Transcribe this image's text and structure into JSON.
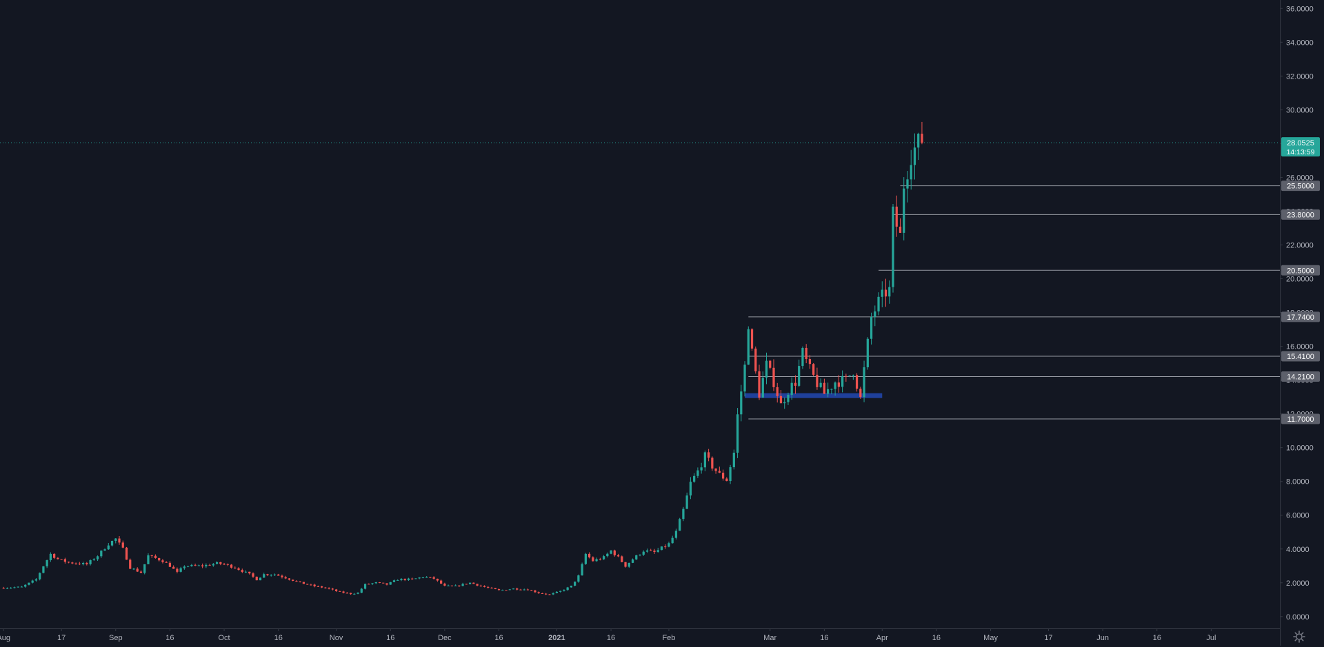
{
  "theme": {
    "background": "#131722",
    "up_color": "#26a69a",
    "down_color": "#ef5350",
    "axis_line": "#363a45",
    "axis_text": "#b2b5be",
    "level_line": "#9598a1",
    "level_label_bg": "#5d606b",
    "zone_color": "#2962ff",
    "last_price_color": "#26a69a"
  },
  "chart_data": {
    "type": "candlestick",
    "title": "",
    "xlabel": "",
    "ylabel": "",
    "ylim": [
      -0.7,
      36.5
    ],
    "grid": false,
    "x_range": [
      "2020-07-31",
      "2021-07-20"
    ],
    "y_ticks": [
      "0.0000",
      "2.0000",
      "4.0000",
      "6.0000",
      "8.0000",
      "10.0000",
      "12.0000",
      "14.0000",
      "16.0000",
      "18.0000",
      "20.0000",
      "22.0000",
      "24.0000",
      "26.0000",
      "28.0000",
      "30.0000",
      "32.0000",
      "34.0000",
      "36.0000"
    ],
    "x_ticks": [
      {
        "label": "Aug",
        "date": "2020-08-01",
        "bold": false
      },
      {
        "label": "17",
        "date": "2020-08-17",
        "bold": false
      },
      {
        "label": "Sep",
        "date": "2020-09-01",
        "bold": false
      },
      {
        "label": "16",
        "date": "2020-09-16",
        "bold": false
      },
      {
        "label": "Oct",
        "date": "2020-10-01",
        "bold": false
      },
      {
        "label": "16",
        "date": "2020-10-16",
        "bold": false
      },
      {
        "label": "Nov",
        "date": "2020-11-01",
        "bold": false
      },
      {
        "label": "16",
        "date": "2020-11-16",
        "bold": false
      },
      {
        "label": "Dec",
        "date": "2020-12-01",
        "bold": false
      },
      {
        "label": "16",
        "date": "2020-12-16",
        "bold": false
      },
      {
        "label": "2021",
        "date": "2021-01-01",
        "bold": true
      },
      {
        "label": "16",
        "date": "2021-01-16",
        "bold": false
      },
      {
        "label": "Feb",
        "date": "2021-02-01",
        "bold": false
      },
      {
        "label": "Mar",
        "date": "2021-03-01",
        "bold": false
      },
      {
        "label": "16",
        "date": "2021-03-16",
        "bold": false
      },
      {
        "label": "Apr",
        "date": "2021-04-01",
        "bold": false
      },
      {
        "label": "16",
        "date": "2021-04-16",
        "bold": false
      },
      {
        "label": "May",
        "date": "2021-05-01",
        "bold": false
      },
      {
        "label": "17",
        "date": "2021-05-17",
        "bold": false
      },
      {
        "label": "Jun",
        "date": "2021-06-01",
        "bold": false
      },
      {
        "label": "16",
        "date": "2021-06-16",
        "bold": false
      },
      {
        "label": "Jul",
        "date": "2021-07-01",
        "bold": false
      }
    ],
    "price_path": [
      [
        "2020-08-01",
        1.7
      ],
      [
        "2020-08-06",
        1.75
      ],
      [
        "2020-08-10",
        2.2
      ],
      [
        "2020-08-12",
        3.0
      ],
      [
        "2020-08-14",
        3.7
      ],
      [
        "2020-08-16",
        3.4
      ],
      [
        "2020-08-19",
        3.2
      ],
      [
        "2020-08-24",
        3.1
      ],
      [
        "2020-08-27",
        3.6
      ],
      [
        "2020-08-30",
        4.3
      ],
      [
        "2020-09-01",
        4.6
      ],
      [
        "2020-09-03",
        4.0
      ],
      [
        "2020-09-05",
        2.9
      ],
      [
        "2020-09-08",
        2.6
      ],
      [
        "2020-09-10",
        3.6
      ],
      [
        "2020-09-14",
        3.3
      ],
      [
        "2020-09-16",
        3.0
      ],
      [
        "2020-09-18",
        2.6
      ],
      [
        "2020-09-20",
        3.0
      ],
      [
        "2020-09-25",
        3.0
      ],
      [
        "2020-09-29",
        3.15
      ],
      [
        "2020-10-01",
        3.1
      ],
      [
        "2020-10-04",
        2.9
      ],
      [
        "2020-10-08",
        2.5
      ],
      [
        "2020-10-10",
        2.2
      ],
      [
        "2020-10-12",
        2.5
      ],
      [
        "2020-10-15",
        2.5
      ],
      [
        "2020-10-18",
        2.3
      ],
      [
        "2020-10-22",
        2.0
      ],
      [
        "2020-10-26",
        1.8
      ],
      [
        "2020-10-29",
        1.7
      ],
      [
        "2020-11-02",
        1.45
      ],
      [
        "2020-11-05",
        1.35
      ],
      [
        "2020-11-07",
        1.4
      ],
      [
        "2020-11-09",
        1.9
      ],
      [
        "2020-11-12",
        2.0
      ],
      [
        "2020-11-15",
        1.9
      ],
      [
        "2020-11-18",
        2.2
      ],
      [
        "2020-11-22",
        2.2
      ],
      [
        "2020-11-25",
        2.35
      ],
      [
        "2020-11-28",
        2.25
      ],
      [
        "2020-12-01",
        1.8
      ],
      [
        "2020-12-04",
        1.8
      ],
      [
        "2020-12-08",
        2.0
      ],
      [
        "2020-12-12",
        1.75
      ],
      [
        "2020-12-16",
        1.55
      ],
      [
        "2020-12-20",
        1.65
      ],
      [
        "2020-12-24",
        1.6
      ],
      [
        "2020-12-27",
        1.4
      ],
      [
        "2020-12-30",
        1.3
      ],
      [
        "2021-01-02",
        1.5
      ],
      [
        "2021-01-05",
        1.8
      ],
      [
        "2021-01-07",
        2.4
      ],
      [
        "2021-01-09",
        3.7
      ],
      [
        "2021-01-11",
        3.3
      ],
      [
        "2021-01-14",
        3.5
      ],
      [
        "2021-01-16",
        3.9
      ],
      [
        "2021-01-18",
        3.5
      ],
      [
        "2021-01-20",
        3.0
      ],
      [
        "2021-01-22",
        3.4
      ],
      [
        "2021-01-25",
        3.9
      ],
      [
        "2021-01-28",
        3.8
      ],
      [
        "2021-02-01",
        4.3
      ],
      [
        "2021-02-03",
        5.0
      ],
      [
        "2021-02-05",
        6.3
      ],
      [
        "2021-02-07",
        7.9
      ],
      [
        "2021-02-09",
        8.6
      ],
      [
        "2021-02-11",
        9.5
      ],
      [
        "2021-02-13",
        8.9
      ],
      [
        "2021-02-15",
        8.4
      ],
      [
        "2021-02-17",
        8.1
      ],
      [
        "2021-02-19",
        9.7
      ],
      [
        "2021-02-20",
        11.9
      ],
      [
        "2021-02-22",
        14.8
      ],
      [
        "2021-02-23",
        17.4
      ],
      [
        "2021-02-24",
        15.6
      ],
      [
        "2021-02-26",
        13.2
      ],
      [
        "2021-02-28",
        14.9
      ],
      [
        "2021-03-02",
        13.9
      ],
      [
        "2021-03-04",
        12.5
      ],
      [
        "2021-03-06",
        13.4
      ],
      [
        "2021-03-08",
        13.9
      ],
      [
        "2021-03-10",
        15.6
      ],
      [
        "2021-03-12",
        14.6
      ],
      [
        "2021-03-14",
        13.8
      ],
      [
        "2021-03-16",
        13.2
      ],
      [
        "2021-03-19",
        13.9
      ],
      [
        "2021-03-22",
        14.0
      ],
      [
        "2021-03-24",
        14.6
      ],
      [
        "2021-03-26",
        12.9
      ],
      [
        "2021-03-27",
        14.6
      ],
      [
        "2021-03-29",
        17.7
      ],
      [
        "2021-03-31",
        18.6
      ],
      [
        "2021-04-02",
        19.2
      ],
      [
        "2021-04-03",
        19.3
      ],
      [
        "2021-04-04",
        23.8
      ],
      [
        "2021-04-06",
        22.5
      ],
      [
        "2021-04-07",
        25.6
      ],
      [
        "2021-04-09",
        27.4
      ],
      [
        "2021-04-11",
        28.0
      ],
      [
        "2021-04-12",
        28.05
      ]
    ],
    "series": [
      {
        "values_from": "price_path"
      }
    ],
    "price_levels": [
      "25.5000",
      "23.8000",
      "20.5000",
      "17.7400",
      "15.4100",
      "14.2100",
      "11.7000"
    ],
    "price_level_start_dates": [
      "2021-04-06",
      "2021-04-04",
      "2021-03-31",
      "2021-02-23",
      "2021-02-23",
      "2021-02-23",
      "2021-02-23"
    ],
    "demand_zone": {
      "y": 13.1,
      "from": "2021-02-22",
      "to": "2021-04-01"
    },
    "last_price": {
      "value": "28.0525",
      "countdown": "14:13:59"
    }
  }
}
